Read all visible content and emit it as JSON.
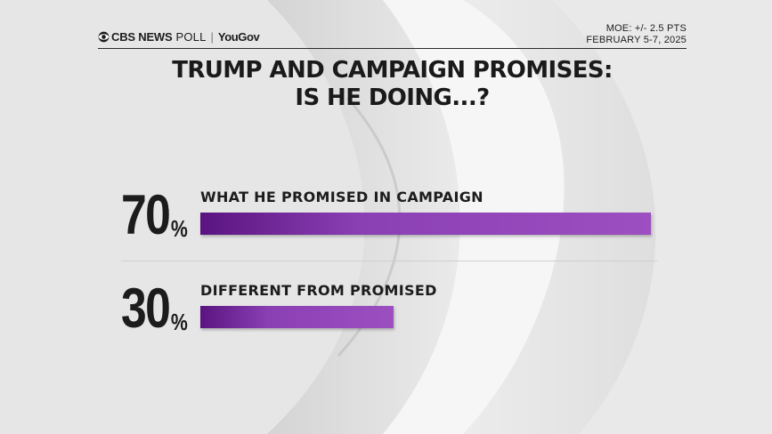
{
  "header": {
    "brand": "CBS NEWS",
    "poll": "POLL",
    "separator": "|",
    "partner": "YouGov",
    "moe": "MOE: +/- 2.5 PTS",
    "dates": "FEBRUARY 5-7, 2025"
  },
  "title_lines": [
    "TRUMP AND CAMPAIGN PROMISES:",
    "IS HE DOING...?"
  ],
  "colors": {
    "bar_start": "#5a1480",
    "bar_end": "#9c4fc0",
    "text": "#1c1c1c",
    "background": "#e6e6e6"
  },
  "icons": {
    "logo": "cbs-eye-icon"
  },
  "chart_data": {
    "type": "bar",
    "orientation": "horizontal",
    "title": "TRUMP AND CAMPAIGN PROMISES: IS HE DOING...?",
    "categories": [
      "WHAT HE PROMISED IN CAMPAIGN",
      "DIFFERENT FROM PROMISED"
    ],
    "values": [
      70,
      30
    ],
    "value_labels": [
      "70",
      "30"
    ],
    "unit": "%",
    "xlim": [
      0,
      70
    ],
    "grid": false,
    "legend": "none"
  }
}
